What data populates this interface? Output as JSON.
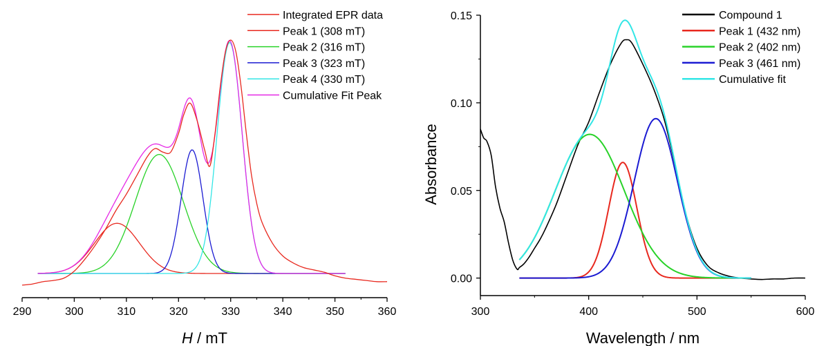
{
  "chart_data": [
    {
      "type": "line",
      "title": "",
      "xlabel_italic": "H",
      "xlabel_rest": " / mT",
      "ylabel": "",
      "xlim": [
        290,
        360
      ],
      "ylim": [
        -0.05,
        1.05
      ],
      "xticks": [
        290,
        300,
        310,
        320,
        330,
        340,
        350,
        360
      ],
      "yticks": [],
      "legend_position": "top-right",
      "series": [
        {
          "name": "Integrated EPR data",
          "color": "#e8281e",
          "x": [
            290,
            292,
            294,
            296,
            298,
            300,
            302,
            304,
            306,
            308,
            310,
            312,
            314,
            315.5,
            317,
            318.5,
            320,
            321,
            322.2,
            323.5,
            325,
            326,
            327,
            328,
            329,
            330,
            331,
            332,
            333,
            334,
            335,
            336,
            338,
            340,
            342,
            344,
            346,
            348,
            350,
            352,
            354,
            356,
            358,
            360
          ],
          "y": [
            -0.05,
            -0.045,
            -0.035,
            -0.03,
            -0.02,
            0.01,
            0.06,
            0.12,
            0.19,
            0.27,
            0.34,
            0.42,
            0.5,
            0.535,
            0.52,
            0.52,
            0.6,
            0.68,
            0.73,
            0.66,
            0.53,
            0.46,
            0.6,
            0.8,
            0.95,
            1.0,
            0.95,
            0.8,
            0.6,
            0.42,
            0.3,
            0.22,
            0.13,
            0.075,
            0.045,
            0.025,
            0.015,
            0.005,
            -0.01,
            -0.02,
            -0.025,
            -0.03,
            -0.035,
            -0.035
          ]
        },
        {
          "name": "Peak 1 (308 mT)",
          "color": "#e8281e",
          "center": 308.2,
          "amplitude": 0.215,
          "width": 4.3,
          "baseline": 0
        },
        {
          "name": "Peak 2 (316 mT)",
          "color": "#28d228",
          "center": 316.3,
          "amplitude": 0.51,
          "width": 4.6,
          "baseline": 0
        },
        {
          "name": "Peak 3 (323 mT)",
          "color": "#1a1ad2",
          "center": 322.6,
          "amplitude": 0.53,
          "width": 2.1,
          "baseline": 0
        },
        {
          "name": "Peak 4 (330 mT)",
          "color": "#32e6e6",
          "center": 329.8,
          "amplitude": 0.99,
          "width": 2.4,
          "baseline": 0
        },
        {
          "name": "Cumulative Fit Peak",
          "color": "#e628e6",
          "composite": true
        }
      ]
    },
    {
      "type": "line",
      "title": "",
      "xlabel": "Wavelength / nm",
      "ylabel": "Absorbance",
      "xlim": [
        300,
        600
      ],
      "ylim": [
        -0.01,
        0.15
      ],
      "xticks": [
        300,
        400,
        500,
        600
      ],
      "yticks": [
        "0.00",
        "0.05",
        "0.10",
        "0.15"
      ],
      "legend_position": "top-right",
      "series": [
        {
          "name": "Compound 1",
          "color": "#000000",
          "x": [
            300,
            303,
            306,
            310,
            314,
            318,
            322,
            326,
            330,
            334,
            336,
            340,
            345,
            350,
            355,
            360,
            370,
            380,
            390,
            400,
            410,
            420,
            430,
            435,
            440,
            450,
            460,
            470,
            480,
            490,
            500,
            510,
            520,
            530,
            540,
            550,
            560,
            570,
            580,
            590,
            600
          ],
          "y": [
            0.085,
            0.08,
            0.078,
            0.07,
            0.052,
            0.04,
            0.032,
            0.02,
            0.01,
            0.005,
            0.006,
            0.008,
            0.012,
            0.017,
            0.022,
            0.028,
            0.042,
            0.059,
            0.076,
            0.089,
            0.106,
            0.122,
            0.134,
            0.136,
            0.134,
            0.122,
            0.108,
            0.09,
            0.064,
            0.036,
            0.017,
            0.007,
            0.003,
            0.001,
            0.0,
            -0.0005,
            -0.0008,
            -0.0005,
            -0.0005,
            0.0,
            0.0
          ]
        },
        {
          "name": "Peak 1 (432 nm)",
          "color": "#e8281e",
          "center": 431.5,
          "amplitude": 0.066,
          "width": 13.0,
          "baseline": 0
        },
        {
          "name": "Peak 2 (402 nm)",
          "color": "#28d228",
          "center": 401,
          "amplitude": 0.082,
          "width": 32.0,
          "baseline": 0
        },
        {
          "name": "Peak 3 (461 nm)",
          "color": "#1a1ad2",
          "center": 462,
          "amplitude": 0.091,
          "width": 20.0,
          "baseline": 0
        },
        {
          "name": "Cumulative fit",
          "color": "#32e6e6",
          "composite": true
        }
      ]
    }
  ]
}
